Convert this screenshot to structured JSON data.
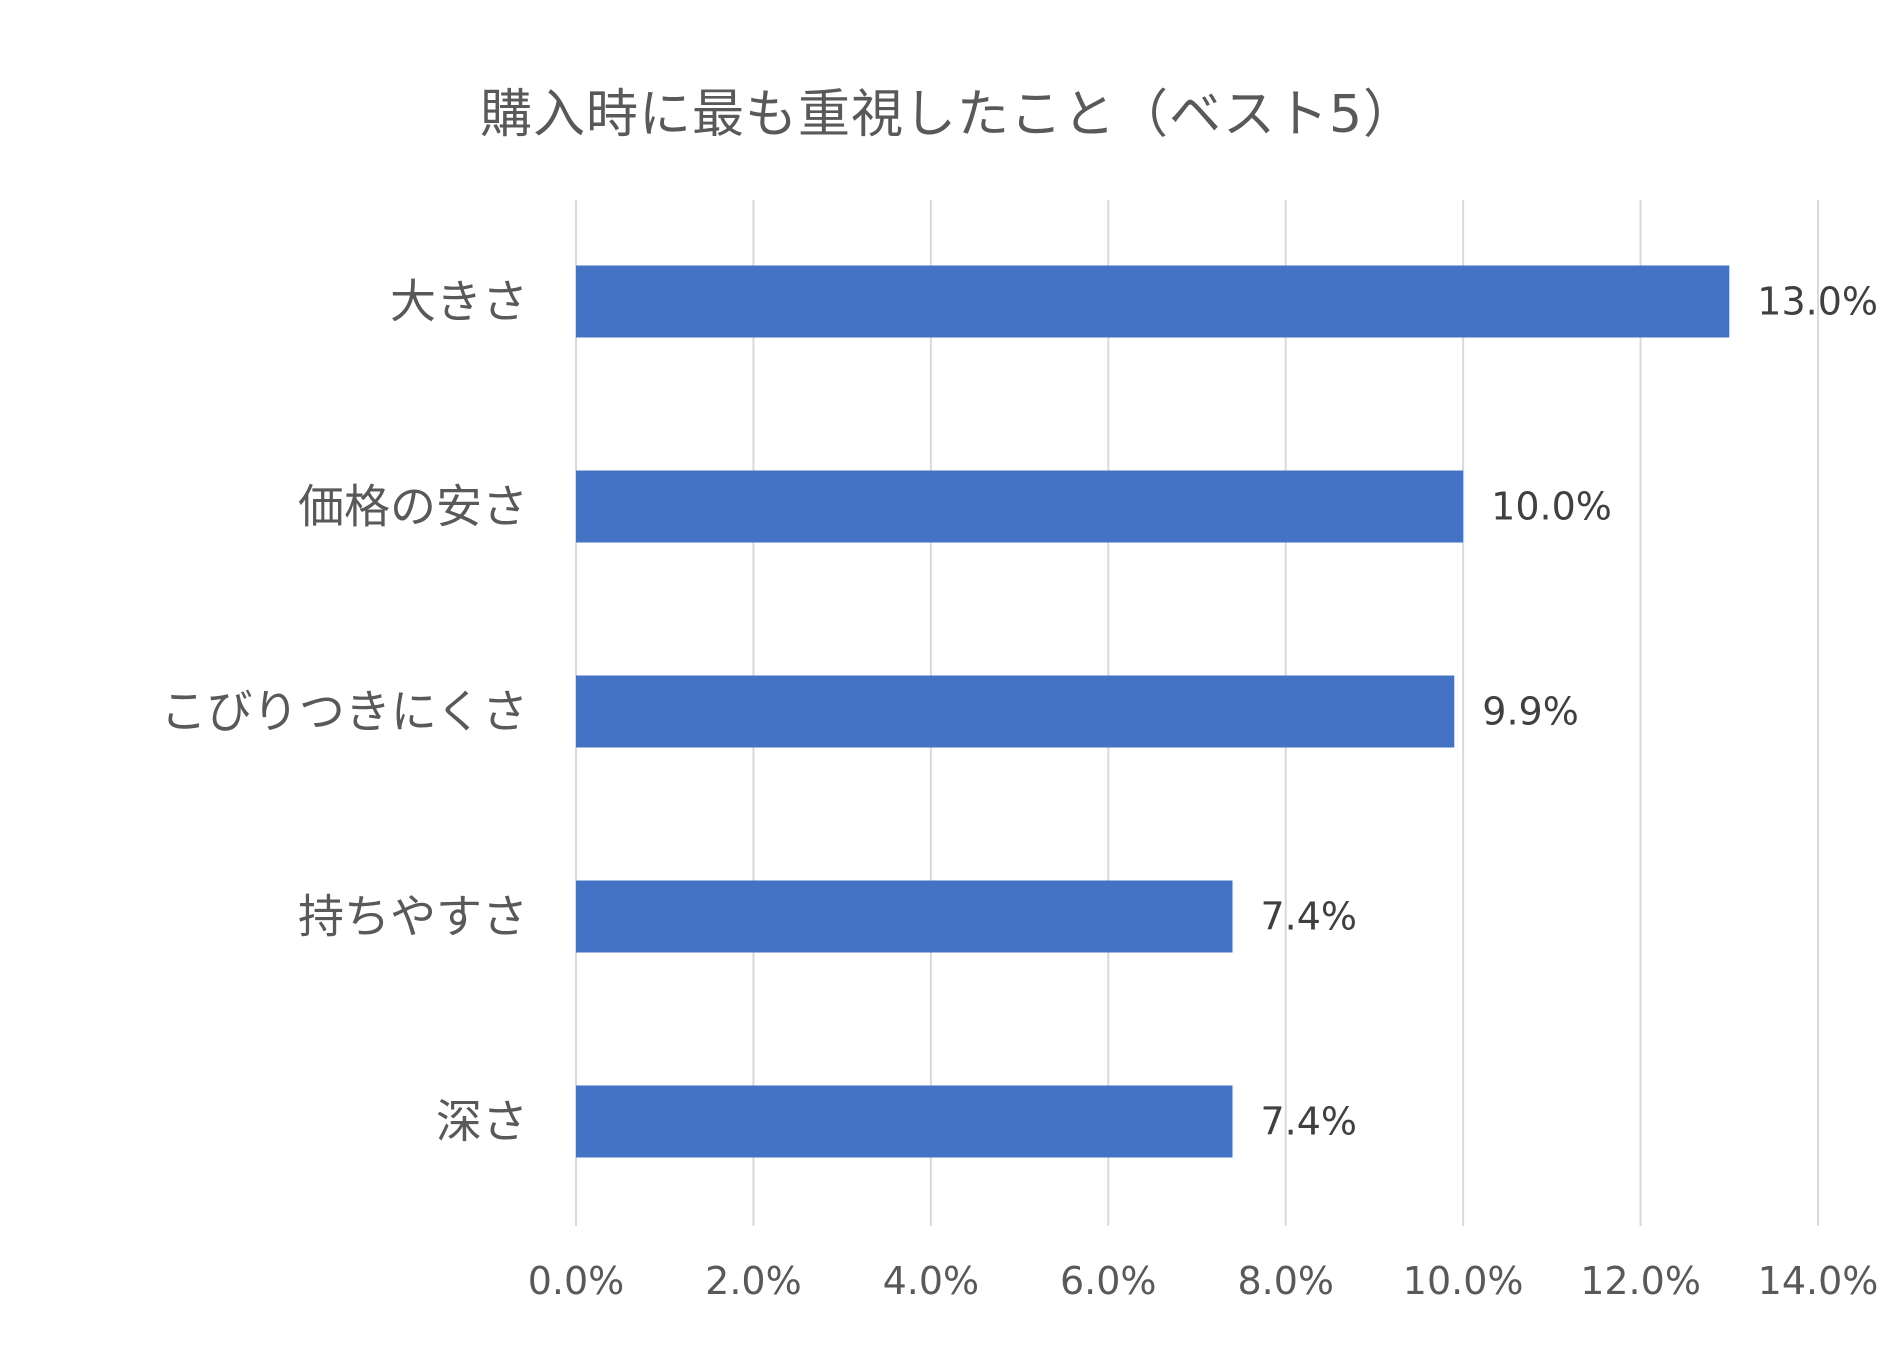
{
  "chart_data": {
    "type": "bar",
    "orientation": "horizontal",
    "title": "購入時に最も重視したこと（ベスト5）",
    "categories": [
      "大きさ",
      "価格の安さ",
      "こびりつきにくさ",
      "持ちやすさ",
      "深さ"
    ],
    "values": [
      13.0,
      10.0,
      9.9,
      7.4,
      7.4
    ],
    "data_labels": [
      "13.0%",
      "10.0%",
      "9.9%",
      "7.4%",
      "7.4%"
    ],
    "xlim": [
      0,
      14
    ],
    "xticks": [
      0,
      2,
      4,
      6,
      8,
      10,
      12,
      14
    ],
    "xtick_labels": [
      "0.0%",
      "2.0%",
      "4.0%",
      "6.0%",
      "8.0%",
      "10.0%",
      "12.0%",
      "14.0%"
    ],
    "xlabel": "",
    "ylabel": "",
    "grid": "vertical",
    "legend": "none",
    "bar_color": "#4472C4",
    "grid_color": "#D9D9D9",
    "text_color": "#595959"
  }
}
